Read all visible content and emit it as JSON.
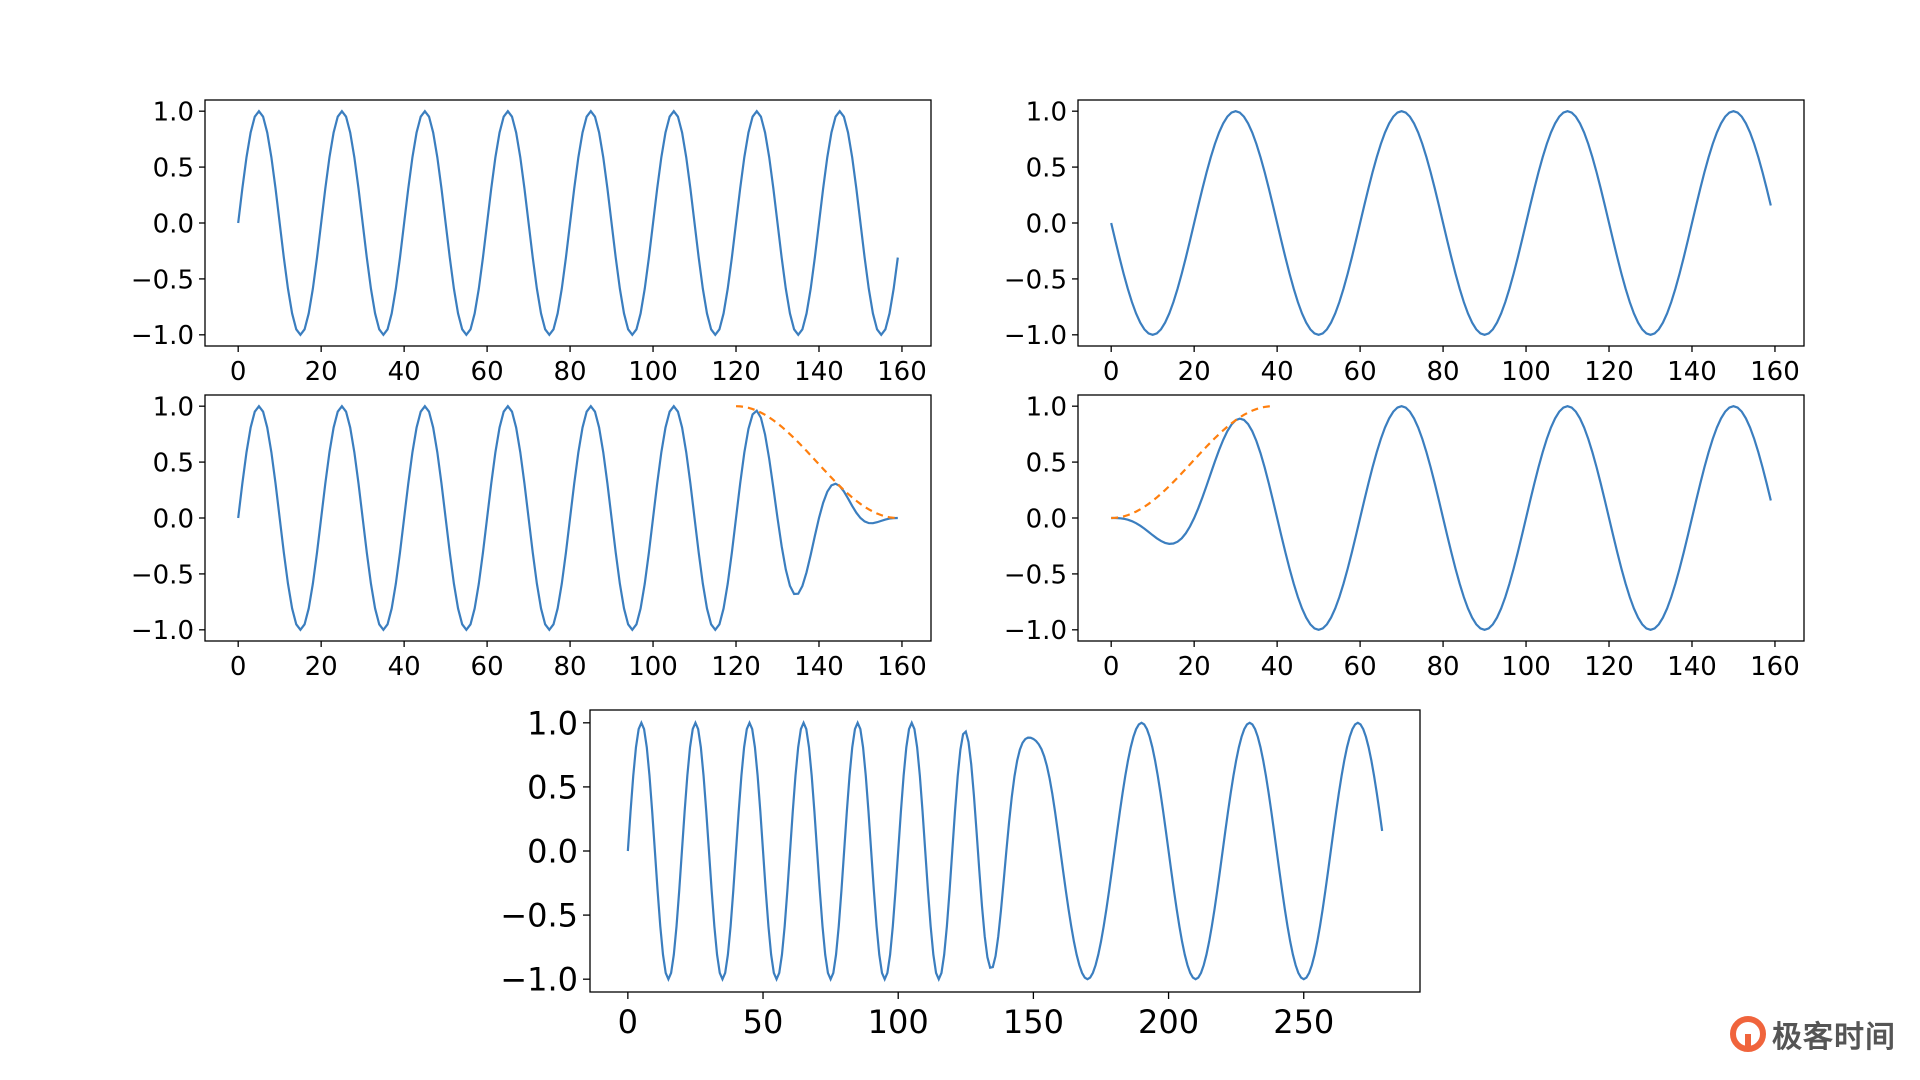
{
  "colors": {
    "series_blue": "#3b7ebf",
    "taper_orange": "#ff7f0e",
    "axes": "#000000",
    "watermark_accent": "#f0643c"
  },
  "watermark": {
    "text": "极客时间",
    "icon": "geek-time-logo-icon"
  },
  "chart_data": [
    {
      "type": "line",
      "panel": "top-left",
      "xlim": [
        -8,
        167
      ],
      "ylim": [
        -1.1,
        1.1
      ],
      "xticks": [
        0,
        20,
        40,
        60,
        80,
        100,
        120,
        140,
        160
      ],
      "yticks": [
        -1.0,
        -0.5,
        0.0,
        0.5,
        1.0
      ],
      "tick_labels_x": [
        "0",
        "20",
        "40",
        "60",
        "80",
        "100",
        "120",
        "140",
        "160"
      ],
      "tick_labels_y": [
        "−1.0",
        "−0.5",
        "0.0",
        "0.5",
        "1.0"
      ],
      "grid": false,
      "series": [
        {
          "function": "sin",
          "period": 20,
          "x_start": 0,
          "x_end": 159,
          "step": 1
        }
      ]
    },
    {
      "type": "line",
      "panel": "top-right",
      "xlim": [
        -8,
        167
      ],
      "ylim": [
        -1.1,
        1.1
      ],
      "xticks": [
        0,
        20,
        40,
        60,
        80,
        100,
        120,
        140,
        160
      ],
      "yticks": [
        -1.0,
        -0.5,
        0.0,
        0.5,
        1.0
      ],
      "tick_labels_x": [
        "0",
        "20",
        "40",
        "60",
        "80",
        "100",
        "120",
        "140",
        "160"
      ],
      "tick_labels_y": [
        "−1.0",
        "−0.5",
        "0.0",
        "0.5",
        "1.0"
      ],
      "grid": false,
      "series": [
        {
          "function": "-sin",
          "period": 40,
          "x_start": 0,
          "x_end": 159,
          "step": 1
        }
      ]
    },
    {
      "type": "line",
      "panel": "middle-left",
      "xlim": [
        -8,
        167
      ],
      "ylim": [
        -1.1,
        1.1
      ],
      "xticks": [
        0,
        20,
        40,
        60,
        80,
        100,
        120,
        140,
        160
      ],
      "yticks": [
        -1.0,
        -0.5,
        0.0,
        0.5,
        1.0
      ],
      "tick_labels_x": [
        "0",
        "20",
        "40",
        "60",
        "80",
        "100",
        "120",
        "140",
        "160"
      ],
      "tick_labels_y": [
        "−1.0",
        "−0.5",
        "0.0",
        "0.5",
        "1.0"
      ],
      "grid": false,
      "series": [
        {
          "function": "sin",
          "period": 20,
          "x_start": 0,
          "x_end": 159,
          "step": 1,
          "taper": "fade-out",
          "taper_start": 120,
          "taper_end": 159
        },
        {
          "function": "fade-out-window",
          "style": "dashed",
          "x_start": 120,
          "x_end": 159,
          "step": 1
        }
      ]
    },
    {
      "type": "line",
      "panel": "middle-right",
      "xlim": [
        -8,
        167
      ],
      "ylim": [
        -1.1,
        1.1
      ],
      "xticks": [
        0,
        20,
        40,
        60,
        80,
        100,
        120,
        140,
        160
      ],
      "yticks": [
        -1.0,
        -0.5,
        0.0,
        0.5,
        1.0
      ],
      "tick_labels_x": [
        "0",
        "20",
        "40",
        "60",
        "80",
        "100",
        "120",
        "140",
        "160"
      ],
      "tick_labels_y": [
        "−1.0",
        "−0.5",
        "0.0",
        "0.5",
        "1.0"
      ],
      "grid": false,
      "series": [
        {
          "function": "-sin",
          "period": 40,
          "x_start": 0,
          "x_end": 159,
          "step": 1,
          "taper": "fade-in",
          "taper_start": 0,
          "taper_end": 39
        },
        {
          "function": "fade-in-window",
          "style": "dashed",
          "x_start": 0,
          "x_end": 39,
          "step": 1
        }
      ]
    },
    {
      "type": "line",
      "panel": "bottom",
      "xlim": [
        -14,
        293
      ],
      "ylim": [
        -1.1,
        1.1
      ],
      "xticks": [
        0,
        50,
        100,
        150,
        200,
        250
      ],
      "yticks": [
        -1.0,
        -0.5,
        0.0,
        0.5,
        1.0
      ],
      "tick_labels_x": [
        "0",
        "50",
        "100",
        "150",
        "200",
        "250"
      ],
      "tick_labels_y": [
        "−1.0",
        "−0.5",
        "0.0",
        "0.5",
        "1.0"
      ],
      "grid": false,
      "series": [
        {
          "function": "crossfade",
          "note": "panel middle-left values for x=0..119, then sum of middle-left (120..159) and middle-right (0..39) over the overlap, then middle-right values 40..159",
          "x_start": 0,
          "x_end": 279,
          "step": 1
        }
      ]
    }
  ]
}
